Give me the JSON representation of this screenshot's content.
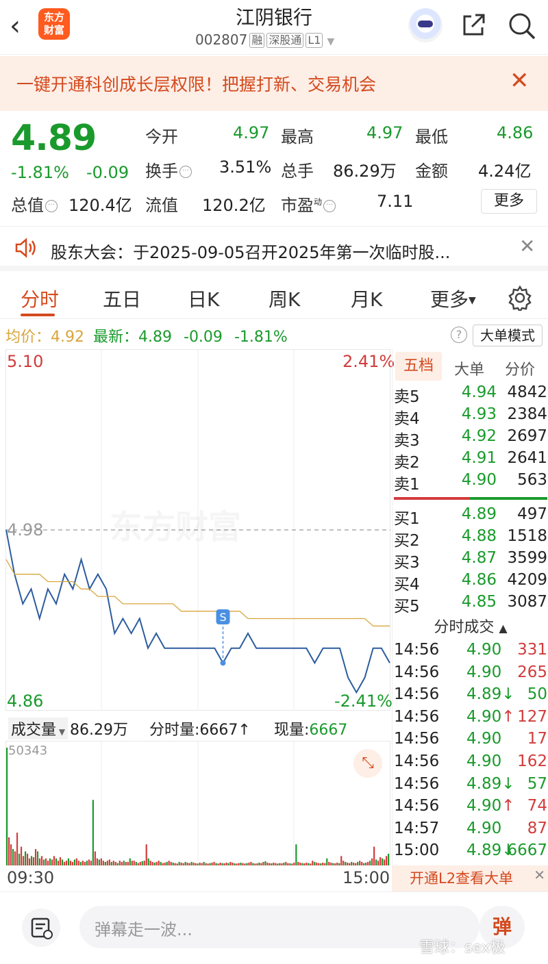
{
  "header": {
    "title": "江阴银行",
    "code": "002807",
    "tags": [
      "融",
      "深股通",
      "L1"
    ],
    "logo_text_1": "东方",
    "logo_text_2": "财富"
  },
  "promo": {
    "text": "一键开通科创成长层权限！把握打新、交易机会"
  },
  "quote": {
    "price": "4.89",
    "change_pct": "-1.81%",
    "change": "-0.09",
    "open_label": "今开",
    "open": "4.97",
    "high_label": "最高",
    "high": "4.97",
    "low_label": "最低",
    "low": "4.86",
    "turnover_label": "换手",
    "turnover": "3.51%",
    "volume_label": "总手",
    "volume": "86.29万",
    "amount_label": "金额",
    "amount": "4.24亿",
    "mcap_label": "总值",
    "mcap": "120.4亿",
    "float_label": "流值",
    "float_cap": "120.2亿",
    "pe_label": "市盈",
    "pe_sup": "动",
    "pe": "7.11",
    "more": "更多"
  },
  "notice": {
    "text": "股东大会：于2025-09-05召开2025年第一次临时股..."
  },
  "tabs": [
    "分时",
    "五日",
    "日K",
    "周K",
    "月K",
    "更多"
  ],
  "info": {
    "avg_label": "均价：",
    "avg": "4.92",
    "latest_label": "最新：",
    "latest": "4.89",
    "chg": "-0.09",
    "pct": "-1.81%",
    "mode_btn": "大单模式"
  },
  "chart_data": {
    "type": "line",
    "series": [
      {
        "name": "",
        "values": [
          4.98,
          4.95,
          4.93,
          4.94,
          4.92,
          4.94,
          4.93,
          4.95,
          4.94,
          4.96,
          4.94,
          4.95,
          4.94,
          4.91,
          4.92,
          4.91,
          4.92,
          4.9,
          4.91,
          4.9,
          4.9,
          4.9,
          4.9,
          4.9,
          4.9,
          4.9,
          4.89,
          4.9,
          4.9,
          4.91,
          4.9,
          4.9,
          4.9,
          4.9,
          4.9,
          4.9,
          4.9,
          4.89,
          4.9,
          4.9,
          4.9,
          4.88,
          4.87,
          4.88,
          4.9,
          4.9,
          4.89
        ]
      },
      {
        "name": "",
        "values": [
          4.96,
          4.95,
          4.95,
          4.95,
          4.95,
          4.945,
          4.945,
          4.945,
          4.945,
          4.94,
          4.94,
          4.935,
          4.935,
          4.935,
          4.93,
          4.93,
          4.93,
          4.93,
          4.93,
          4.93,
          4.93,
          4.925,
          4.925,
          4.925,
          4.925,
          4.925,
          4.925,
          4.925,
          4.925,
          4.92,
          4.92,
          4.92,
          4.92,
          4.92,
          4.92,
          4.92,
          4.92,
          4.92,
          4.92,
          4.92,
          4.92,
          4.92,
          4.92,
          4.92,
          4.915,
          4.915,
          4.915
        ]
      }
    ],
    "ylim": [
      4.86,
      5.1
    ],
    "y_top_label": "5.10",
    "y_mid_label": "4.98",
    "y_bottom_label": "4.86",
    "pct_top_label": "2.41%",
    "pct_bottom_label": "-2.41%",
    "x_start_label": "09:30",
    "x_end_label": "15:00",
    "marker": "S"
  },
  "volume": {
    "label": "成交量",
    "total": "86.29万",
    "minute_label": "分时量:",
    "minute": "6667↑",
    "now_label": "现量:",
    "now": "6667",
    "max_label": "50343",
    "bars": [
      50343,
      12000,
      9000,
      7000,
      6000,
      14000,
      5000,
      8000,
      4000,
      6000,
      5000,
      3000,
      4000,
      3500,
      7000,
      6000,
      3000,
      4000,
      2500,
      3000,
      2000,
      3000,
      2500,
      4000,
      3000,
      2000,
      3500,
      2500,
      1500,
      2000,
      3000,
      2000,
      1500,
      2500,
      3000,
      2000,
      1500,
      2000,
      1500,
      2000,
      2500,
      2000,
      28000,
      6000,
      3000,
      2500,
      3000,
      2000,
      1500,
      2000,
      2500,
      1500,
      2000,
      1500,
      1000,
      2000,
      1500,
      2000,
      1500,
      1500,
      3000,
      2000,
      2000,
      1500,
      1000,
      1500,
      1800,
      2000,
      9000,
      3000,
      2000,
      1500,
      1200,
      1500,
      2000,
      1500,
      1000,
      1200,
      1500,
      2000,
      1500,
      1200,
      1000,
      800,
      1500,
      1200,
      1000,
      1500,
      1200,
      1000,
      1500,
      1200,
      1000,
      800,
      1200,
      1000,
      1500,
      1000,
      800,
      1000,
      1200,
      1500,
      1000,
      800,
      1200,
      1000,
      900,
      1200,
      1000,
      1500,
      1200,
      900,
      800,
      1000,
      1200,
      1000,
      800,
      1000,
      1200,
      1500,
      1000,
      800,
      900,
      1200,
      1000,
      1500,
      1800,
      1200,
      1000,
      900,
      1200,
      1000,
      800,
      1000,
      900,
      1200,
      1500,
      1000,
      900,
      800,
      1200,
      9000,
      1500,
      1200,
      1000,
      900,
      1200,
      1000,
      800,
      2000,
      1500,
      1200,
      1000,
      900,
      1200,
      1000,
      3000,
      1500,
      1200,
      1000,
      900,
      1200,
      1000,
      4000,
      2000,
      1500,
      1200,
      1000,
      1500,
      1200,
      1000,
      1500,
      2000,
      1500,
      1000,
      1200,
      1500,
      2000,
      3000,
      8000,
      2500,
      2000,
      3500,
      3000,
      2500,
      4000,
      5000
    ]
  },
  "orderbook": {
    "tabs": [
      "五档",
      "大单",
      "分价"
    ],
    "asks": [
      {
        "l": "卖5",
        "p": "4.94",
        "v": "4842"
      },
      {
        "l": "卖4",
        "p": "4.93",
        "v": "2384"
      },
      {
        "l": "卖3",
        "p": "4.92",
        "v": "2697"
      },
      {
        "l": "卖2",
        "p": "4.91",
        "v": "2641"
      },
      {
        "l": "卖1",
        "p": "4.90",
        "v": "563"
      }
    ],
    "bids": [
      {
        "l": "买1",
        "p": "4.89",
        "v": "497"
      },
      {
        "l": "买2",
        "p": "4.88",
        "v": "1518"
      },
      {
        "l": "买3",
        "p": "4.87",
        "v": "3599"
      },
      {
        "l": "买4",
        "p": "4.86",
        "v": "4209"
      },
      {
        "l": "买5",
        "p": "4.85",
        "v": "3087"
      }
    ]
  },
  "trades": {
    "title": "分时成交",
    "rows": [
      {
        "t": "14:56",
        "p": "4.90",
        "a": "",
        "v": "331",
        "c": "red"
      },
      {
        "t": "14:56",
        "p": "4.90",
        "a": "",
        "v": "265",
        "c": "red"
      },
      {
        "t": "14:56",
        "p": "4.89",
        "a": "↓",
        "v": "50",
        "c": "grn"
      },
      {
        "t": "14:56",
        "p": "4.90",
        "a": "↑",
        "v": "127",
        "c": "red"
      },
      {
        "t": "14:56",
        "p": "4.90",
        "a": "",
        "v": "17",
        "c": "red"
      },
      {
        "t": "14:56",
        "p": "4.90",
        "a": "",
        "v": "162",
        "c": "red"
      },
      {
        "t": "14:56",
        "p": "4.89",
        "a": "↓",
        "v": "57",
        "c": "grn"
      },
      {
        "t": "14:56",
        "p": "4.90",
        "a": "↑",
        "v": "74",
        "c": "red"
      },
      {
        "t": "14:57",
        "p": "4.90",
        "a": "",
        "v": "87",
        "c": "red"
      },
      {
        "t": "15:00",
        "p": "4.89",
        "a": "↓",
        "v": "6667",
        "c": "grn"
      }
    ]
  },
  "l2_banner": "开通L2查看大单",
  "input": {
    "placeholder": "弹幕走一波...",
    "danmu_btn": "弹"
  },
  "watermark": "东方财富",
  "footer_wm": "雪球：sex极",
  "colors": {
    "up": "#d23b3b",
    "down": "#1a9a2c",
    "accent": "#d44a1e",
    "avg_line": "#d9a53c",
    "price_line": "#2c5c9e"
  }
}
